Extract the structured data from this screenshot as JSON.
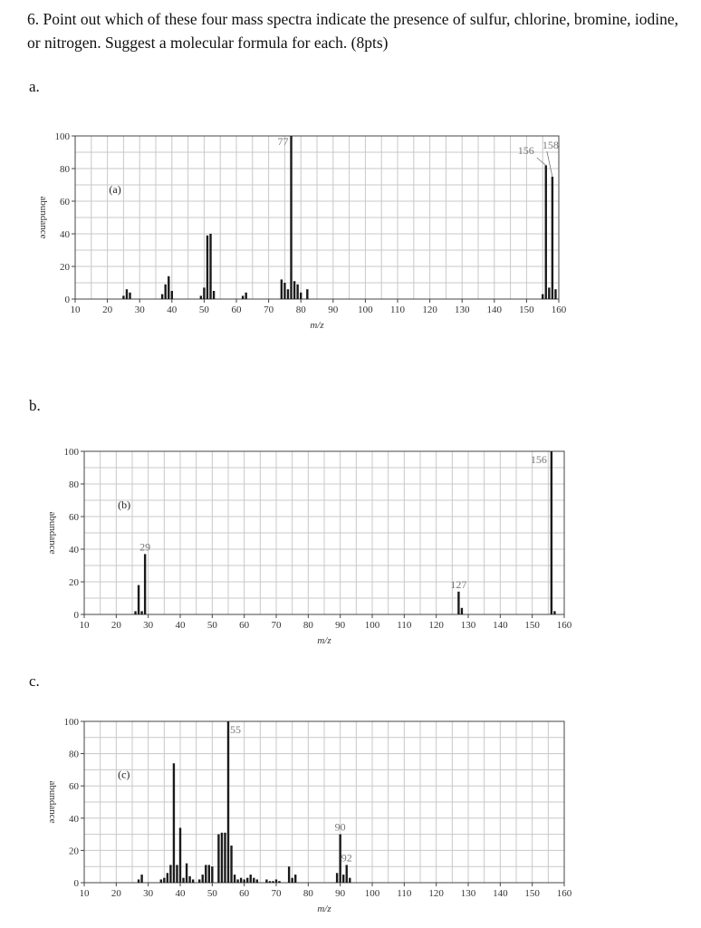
{
  "question": {
    "text": "6. Point out which of these four mass spectra indicate the presence of sulfur, chlorine, bromine, iodine, or nitrogen. Suggest a molecular formula for each. (8pts)"
  },
  "parts": [
    {
      "label": "a."
    },
    {
      "label": "b."
    },
    {
      "label": "c."
    }
  ],
  "chart_data": [
    {
      "type": "bar",
      "panel_tag": "(a)",
      "xlabel": "m/z",
      "ylabel": "abundance",
      "xlim": [
        10,
        160
      ],
      "ylim": [
        0,
        100
      ],
      "xticks": [
        10,
        20,
        30,
        40,
        50,
        60,
        70,
        80,
        90,
        100,
        110,
        120,
        130,
        140,
        150,
        160
      ],
      "yticks": [
        0,
        20,
        40,
        60,
        80,
        100
      ],
      "grid": true,
      "peaks": [
        [
          25,
          2
        ],
        [
          26,
          6
        ],
        [
          27,
          4
        ],
        [
          37,
          3
        ],
        [
          38,
          9
        ],
        [
          39,
          14
        ],
        [
          40,
          5
        ],
        [
          49,
          2
        ],
        [
          50,
          7
        ],
        [
          51,
          39
        ],
        [
          52,
          40
        ],
        [
          53,
          5
        ],
        [
          62,
          2
        ],
        [
          63,
          4
        ],
        [
          74,
          12
        ],
        [
          75,
          10
        ],
        [
          76,
          6
        ],
        [
          77,
          100
        ],
        [
          78,
          11
        ],
        [
          79,
          9
        ],
        [
          80,
          4
        ],
        [
          82,
          6
        ],
        [
          155,
          3
        ],
        [
          156,
          82
        ],
        [
          157,
          7
        ],
        [
          158,
          75
        ],
        [
          159,
          6
        ]
      ],
      "peak_labels": [
        {
          "x": 77,
          "text": "77"
        },
        {
          "x": 156,
          "text": "156"
        },
        {
          "x": 158,
          "text": "158"
        }
      ]
    },
    {
      "type": "bar",
      "panel_tag": "(b)",
      "xlabel": "m/z",
      "ylabel": "abundance",
      "xlim": [
        10,
        160
      ],
      "ylim": [
        0,
        100
      ],
      "xticks": [
        10,
        20,
        30,
        40,
        50,
        60,
        70,
        80,
        90,
        100,
        110,
        120,
        130,
        140,
        150,
        160
      ],
      "yticks": [
        0,
        20,
        40,
        60,
        80,
        100
      ],
      "grid": true,
      "peaks": [
        [
          26,
          2
        ],
        [
          27,
          18
        ],
        [
          28,
          2
        ],
        [
          29,
          37
        ],
        [
          127,
          14
        ],
        [
          128,
          4
        ],
        [
          156,
          100
        ],
        [
          157,
          2
        ]
      ],
      "peak_labels": [
        {
          "x": 29,
          "text": "29"
        },
        {
          "x": 127,
          "text": "127"
        },
        {
          "x": 156,
          "text": "156"
        }
      ]
    },
    {
      "type": "bar",
      "panel_tag": "(c)",
      "xlabel": "m/z",
      "ylabel": "abundance",
      "xlim": [
        10,
        160
      ],
      "ylim": [
        0,
        100
      ],
      "xticks": [
        10,
        20,
        30,
        40,
        50,
        60,
        70,
        80,
        90,
        100,
        110,
        120,
        130,
        140,
        150,
        160
      ],
      "yticks": [
        0,
        20,
        40,
        60,
        80,
        100
      ],
      "grid": true,
      "peaks": [
        [
          27,
          2
        ],
        [
          28,
          5
        ],
        [
          34,
          2
        ],
        [
          35,
          3
        ],
        [
          36,
          6
        ],
        [
          37,
          11
        ],
        [
          38,
          74
        ],
        [
          39,
          11
        ],
        [
          40,
          34
        ],
        [
          41,
          3
        ],
        [
          42,
          12
        ],
        [
          43,
          4
        ],
        [
          44,
          2
        ],
        [
          46,
          2
        ],
        [
          47,
          5
        ],
        [
          48,
          11
        ],
        [
          49,
          11
        ],
        [
          50,
          10
        ],
        [
          52,
          30
        ],
        [
          53,
          31
        ],
        [
          54,
          31
        ],
        [
          55,
          100
        ],
        [
          56,
          23
        ],
        [
          57,
          5
        ],
        [
          58,
          2
        ],
        [
          59,
          3
        ],
        [
          60,
          2
        ],
        [
          61,
          3
        ],
        [
          62,
          5
        ],
        [
          63,
          3
        ],
        [
          64,
          2
        ],
        [
          67,
          2
        ],
        [
          68,
          1
        ],
        [
          69,
          1
        ],
        [
          70,
          2
        ],
        [
          71,
          1
        ],
        [
          74,
          10
        ],
        [
          75,
          3
        ],
        [
          76,
          5
        ],
        [
          89,
          6
        ],
        [
          90,
          30
        ],
        [
          91,
          5
        ],
        [
          92,
          11
        ],
        [
          93,
          3
        ]
      ],
      "peak_labels": [
        {
          "x": 55,
          "text": "55"
        },
        {
          "x": 90,
          "text": "90"
        },
        {
          "x": 92,
          "text": "92"
        }
      ]
    }
  ]
}
